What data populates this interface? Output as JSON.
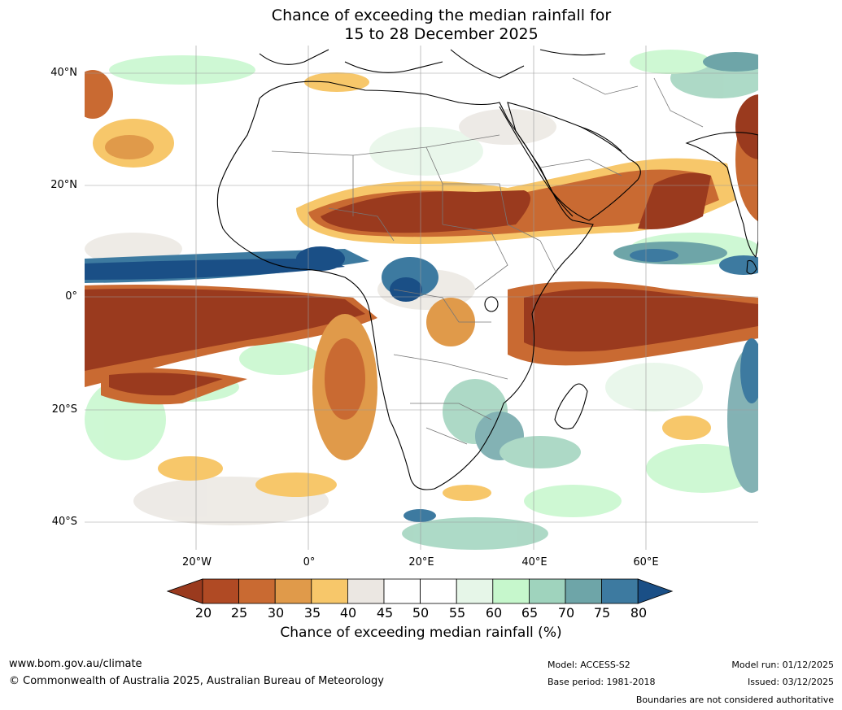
{
  "title": {
    "line1": "Chance of exceeding the median rainfall for",
    "line2": "15 to 28 December 2025"
  },
  "map": {
    "lat_labels": [
      "40°N",
      "20°N",
      "0°",
      "20°S",
      "40°S"
    ],
    "lon_labels": [
      "20°W",
      "0°",
      "20°E",
      "40°E",
      "60°E"
    ],
    "palette": {
      "p20": "#9a3a1e",
      "p25": "#b04a24",
      "p30": "#c96a32",
      "p35": "#e09a4a",
      "p40": "#f7c76a",
      "p45": "#ebe7e2",
      "p50": "#ffffff",
      "p55": "#ffffff",
      "p60": "#e6f6e8",
      "p65": "#c6f7cc",
      "p70": "#9fd3bd",
      "p75": "#6ea5a8",
      "p80": "#3d7aa0",
      "p85": "#1a4f86"
    }
  },
  "colorbar": {
    "ticks": [
      "20",
      "25",
      "30",
      "35",
      "40",
      "45",
      "50",
      "55",
      "60",
      "65",
      "70",
      "75",
      "80"
    ],
    "colors": [
      "#9a3a1e",
      "#b04a24",
      "#c96a32",
      "#e09a4a",
      "#f7c76a",
      "#ebe7e2",
      "#ffffff",
      "#ffffff",
      "#e6f6e8",
      "#c6f7cc",
      "#9fd3bd",
      "#6ea5a8",
      "#3d7aa0",
      "#1a4f86"
    ],
    "label": "Chance of exceeding median rainfall (%)"
  },
  "footer": {
    "website": "www.bom.gov.au/climate",
    "copyright": "© Commonwealth of Australia 2025, Australian Bureau of Meteorology",
    "model": "Model: ACCESS-S2",
    "base_period": "Base period: 1981-2018",
    "model_run": "Model run: 01/12/2025",
    "issued": "Issued: 03/12/2025",
    "disclaimer": "Boundaries are not considered authoritative"
  }
}
